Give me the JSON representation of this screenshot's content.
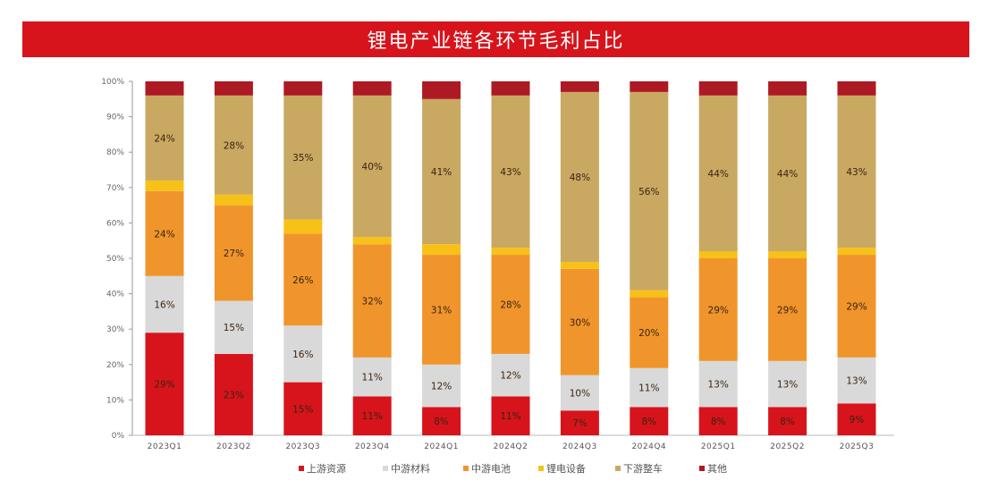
{
  "chart_data": {
    "type": "bar",
    "stacked": true,
    "title": "锂电产业链各环节毛利占比",
    "xlabel": "",
    "ylabel": "",
    "ylim": [
      0,
      100
    ],
    "yticks": [
      "0%",
      "10%",
      "20%",
      "30%",
      "40%",
      "50%",
      "60%",
      "70%",
      "80%",
      "90%",
      "100%"
    ],
    "grid": false,
    "legend_position": "bottom",
    "categories": [
      "2023Q1",
      "2023Q2",
      "2023Q3",
      "2023Q4",
      "2024Q1",
      "2024Q2",
      "2024Q3",
      "2024Q4",
      "2025Q1",
      "2025Q2",
      "2025Q3"
    ],
    "series": [
      {
        "name": "上游资源",
        "color": "#d7141c",
        "labeled": true,
        "values": [
          29,
          23,
          15,
          11,
          8,
          11,
          7,
          8,
          8,
          8,
          9
        ]
      },
      {
        "name": "中游材料",
        "color": "#d9d9d9",
        "labeled": true,
        "values": [
          16,
          15,
          16,
          11,
          12,
          12,
          10,
          11,
          13,
          13,
          13
        ]
      },
      {
        "name": "中游电池",
        "color": "#f0952c",
        "labeled": true,
        "values": [
          24,
          27,
          26,
          32,
          31,
          28,
          30,
          20,
          29,
          29,
          29
        ]
      },
      {
        "name": "锂电设备",
        "color": "#f7c118",
        "labeled": false,
        "values": [
          3,
          3,
          4,
          2,
          3,
          2,
          2,
          2,
          2,
          2,
          2
        ]
      },
      {
        "name": "下游整车",
        "color": "#c9a862",
        "labeled": true,
        "values": [
          24,
          28,
          35,
          40,
          41,
          43,
          48,
          56,
          44,
          44,
          43
        ]
      },
      {
        "name": "其他",
        "color": "#ad1a23",
        "labeled": false,
        "values": [
          4,
          4,
          4,
          4,
          5,
          4,
          3,
          3,
          4,
          4,
          4
        ]
      }
    ]
  }
}
